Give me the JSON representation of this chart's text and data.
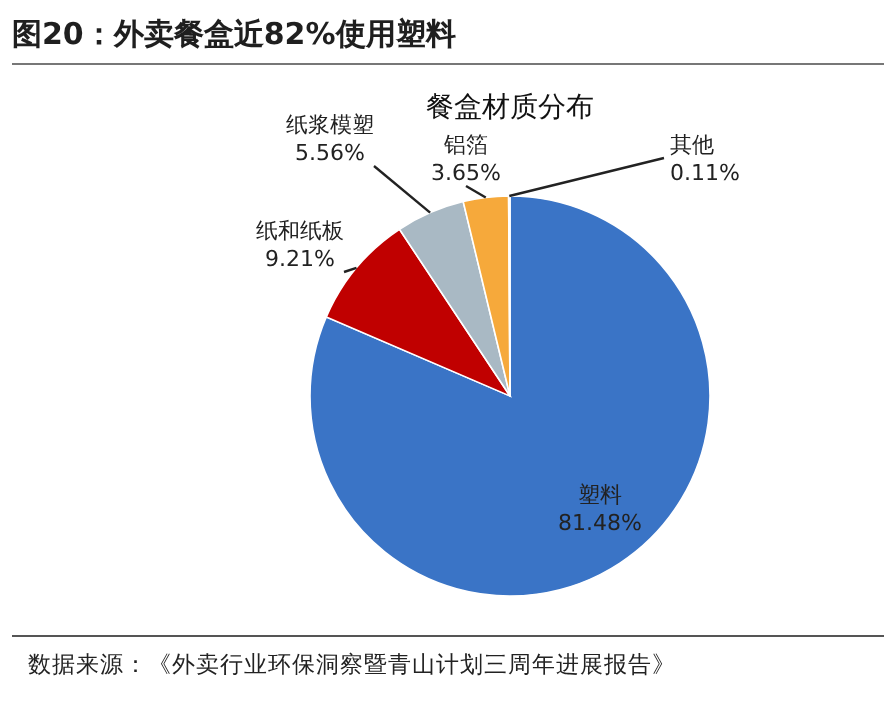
{
  "chart_data": {
    "type": "pie",
    "title": "图20：外卖餐盒近82%使用塑料",
    "subtitle": "餐盒材质分布",
    "categories": [
      "塑料",
      "纸和纸板",
      "纸浆模塑",
      "铝箔",
      "其他"
    ],
    "values": [
      81.48,
      9.21,
      5.56,
      3.65,
      0.11
    ],
    "value_labels": [
      "81.48%",
      "9.21%",
      "5.56%",
      "3.65%",
      "0.11%"
    ],
    "colors": [
      "#3a74c6",
      "#c00000",
      "#a9b9c4",
      "#f6a93b",
      "#d9d9d9"
    ],
    "annotations": [
      "数据来源：《外卖行业环保洞察暨青山计划三周年进展报告》"
    ]
  }
}
